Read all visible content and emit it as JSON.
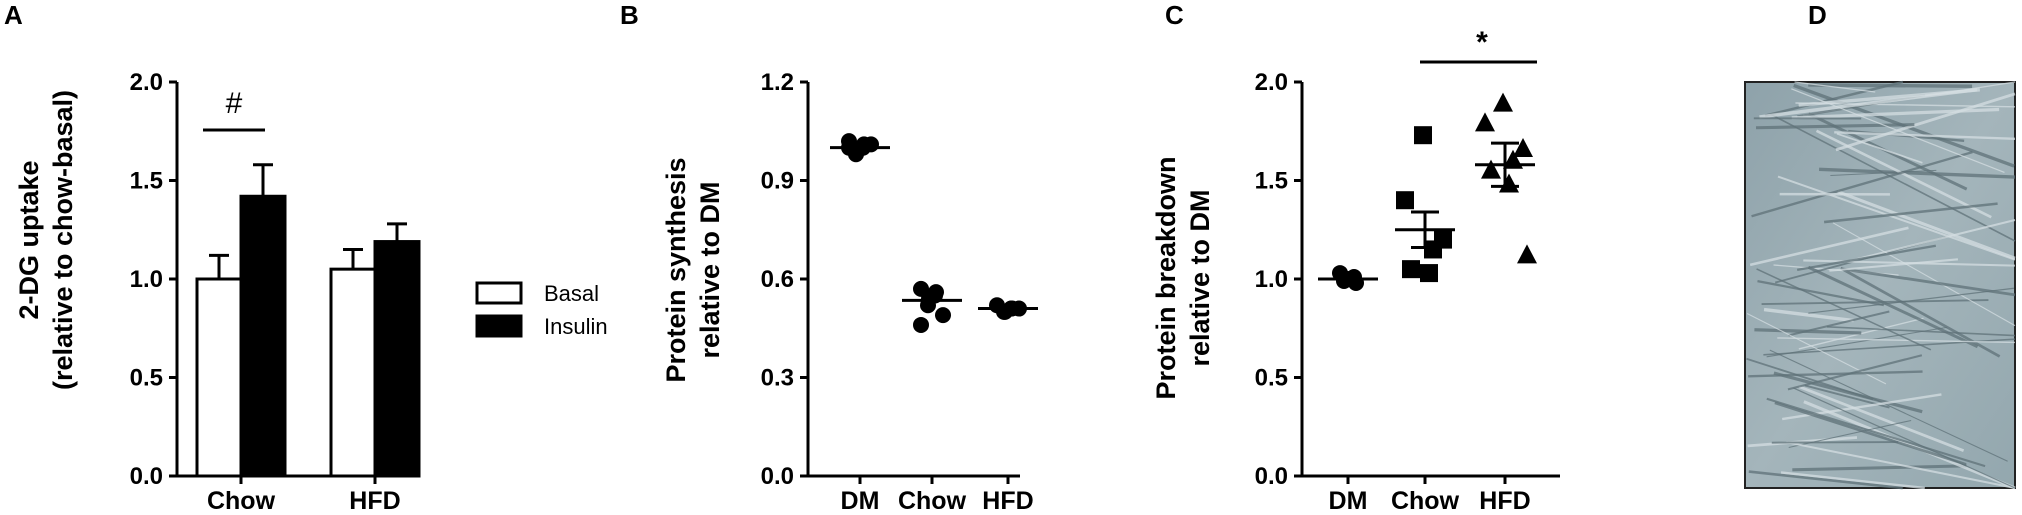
{
  "panel_labels": [
    "A",
    "B",
    "C",
    "D"
  ],
  "chart_data": [
    {
      "type": "bar",
      "panel": "A",
      "title": "",
      "ylabel_lines": [
        "2-DG uptake",
        "(relative to chow-basal)"
      ],
      "ylim": [
        0,
        2.0
      ],
      "yticks": [
        "0.0",
        "0.5",
        "1.0",
        "1.5",
        "2.0"
      ],
      "categories": [
        "Chow",
        "HFD"
      ],
      "series": [
        {
          "name": "Basal",
          "color": "#ffffff",
          "values": [
            1.0,
            1.05
          ],
          "errors": [
            0.12,
            0.1
          ]
        },
        {
          "name": "Insulin",
          "color": "#000000",
          "values": [
            1.42,
            1.19
          ],
          "errors": [
            0.16,
            0.09
          ]
        }
      ],
      "legend": {
        "position": "right",
        "items": [
          "Basal",
          "Insulin"
        ]
      },
      "annotation": {
        "text": "#",
        "between": [
          "Chow Basal",
          "Chow Insulin"
        ]
      }
    },
    {
      "type": "scatter",
      "panel": "B",
      "title": "",
      "ylabel_lines": [
        "Protein synthesis",
        "relative to DM"
      ],
      "ylim": [
        0,
        1.2
      ],
      "yticks": [
        "0.0",
        "0.3",
        "0.6",
        "0.9",
        "1.2"
      ],
      "categories": [
        "DM",
        "Chow",
        "HFD"
      ],
      "marker": "circle",
      "means": [
        1.0,
        0.535,
        0.51
      ],
      "points": [
        [
          1.02,
          1.01,
          1.0,
          0.99,
          0.98,
          1.01,
          1.0
        ],
        [
          0.57,
          0.56,
          0.55,
          0.54,
          0.52,
          0.49,
          0.46
        ],
        [
          0.52,
          0.51,
          0.51,
          0.5,
          0.5,
          0.51
        ]
      ]
    },
    {
      "type": "scatter",
      "panel": "C",
      "title": "",
      "ylabel_lines": [
        "Protein breakdown",
        "relative to DM"
      ],
      "ylim": [
        0,
        2.0
      ],
      "yticks": [
        "0.0",
        "0.5",
        "1.0",
        "1.5",
        "2.0"
      ],
      "categories": [
        "DM",
        "Chow",
        "HFD"
      ],
      "markers": [
        "circle",
        "square",
        "triangle"
      ],
      "means": [
        1.0,
        1.25,
        1.58
      ],
      "sem": [
        0.02,
        0.09,
        0.11
      ],
      "points": [
        [
          1.03,
          1.01,
          1.0,
          0.99,
          0.98
        ],
        [
          1.73,
          1.4,
          1.2,
          1.15,
          1.05,
          1.03
        ],
        [
          1.89,
          1.79,
          1.66,
          1.6,
          1.55,
          1.48,
          1.12
        ]
      ],
      "annotation": {
        "text": "*",
        "between": [
          "Chow",
          "HFD"
        ]
      }
    }
  ],
  "image_panel": {
    "label": "D",
    "description_icon": "microscopy-image"
  }
}
